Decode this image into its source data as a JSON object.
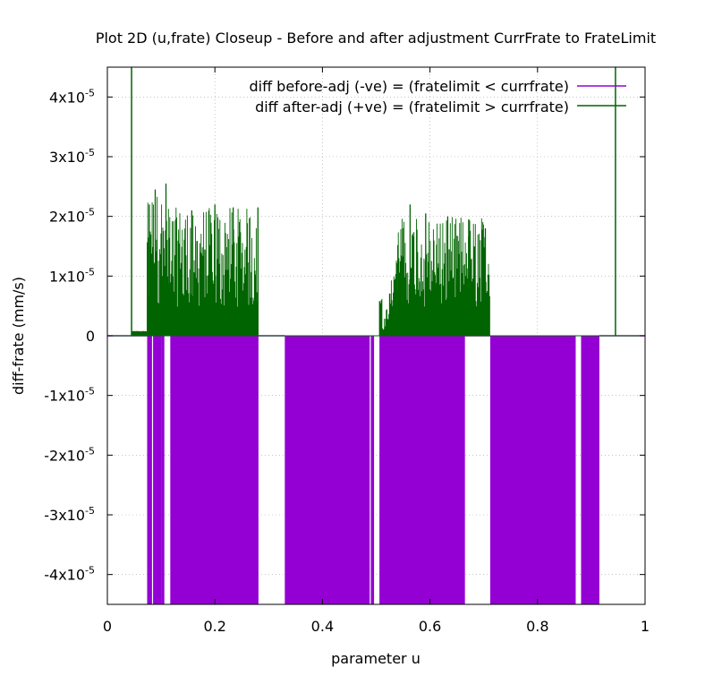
{
  "chart_data": {
    "type": "line",
    "title": "Plot 2D (u,frate) Closeup - Before and after adjustment CurrFrate to FrateLimit",
    "xlabel": "parameter u",
    "ylabel": "diff-frate (mm/s)",
    "xlim": [
      0,
      1
    ],
    "ylim": [
      -4.5e-05,
      4.5e-05
    ],
    "grid": true,
    "legend_position": "top-right",
    "x_ticks": [
      {
        "value": 0,
        "label": "0"
      },
      {
        "value": 0.2,
        "label": "0.2"
      },
      {
        "value": 0.4,
        "label": "0.4"
      },
      {
        "value": 0.6,
        "label": "0.6"
      },
      {
        "value": 0.8,
        "label": "0.8"
      },
      {
        "value": 1,
        "label": "1"
      }
    ],
    "y_ticks": [
      {
        "value": 4e-05,
        "mant": "4x10",
        "exp": "-5",
        "plain": ""
      },
      {
        "value": 3e-05,
        "mant": "3x10",
        "exp": "-5",
        "plain": ""
      },
      {
        "value": 2e-05,
        "mant": "2x10",
        "exp": "-5",
        "plain": ""
      },
      {
        "value": 1e-05,
        "mant": "1x10",
        "exp": "-5",
        "plain": ""
      },
      {
        "value": 0,
        "mant": "",
        "exp": "",
        "plain": "0"
      },
      {
        "value": -1e-05,
        "mant": "-1x10",
        "exp": "-5",
        "plain": ""
      },
      {
        "value": -2e-05,
        "mant": "-2x10",
        "exp": "-5",
        "plain": ""
      },
      {
        "value": -3e-05,
        "mant": "-3x10",
        "exp": "-5",
        "plain": ""
      },
      {
        "value": -4e-05,
        "mant": "-4x10",
        "exp": "-5",
        "plain": ""
      }
    ],
    "series": [
      {
        "name": "diff before-adj (-ve) = (fratelimit < currfrate)",
        "color": "#9400d3",
        "style": "dense-impulses",
        "segments": [
          {
            "x_start": 0.074,
            "x_end": 0.083,
            "y_min": -4.5e-05
          },
          {
            "x_start": 0.085,
            "x_end": 0.1,
            "y_min": -4.5e-05
          },
          {
            "x_start": 0.1,
            "x_end": 0.106,
            "y_min": -4.5e-05
          },
          {
            "x_start": 0.117,
            "x_end": 0.281,
            "y_min": -4.5e-05
          },
          {
            "x_start": 0.33,
            "x_end": 0.488,
            "y_min": -4.5e-05
          },
          {
            "x_start": 0.49,
            "x_end": 0.496,
            "y_min": -4.5e-05
          },
          {
            "x_start": 0.506,
            "x_end": 0.665,
            "y_min": -4.5e-05
          },
          {
            "x_start": 0.712,
            "x_end": 0.871,
            "y_min": -4.5e-05
          },
          {
            "x_start": 0.881,
            "x_end": 0.915,
            "y_min": -4.5e-05
          }
        ],
        "baseline_spans": [
          {
            "x_start": 0,
            "x_end": 0.074
          },
          {
            "x_start": 0.28,
            "x_end": 0.33
          },
          {
            "x_start": 0.665,
            "x_end": 0.712
          },
          {
            "x_start": 0.915,
            "x_end": 1
          }
        ]
      },
      {
        "name": "diff after-adj (+ve) = (fratelimit > currfrate)",
        "color": "#006400",
        "style": "dense-impulses",
        "full_height_spikes": [
          0.045,
          0.945
        ],
        "segments": [
          {
            "x_start": 0.045,
            "x_end": 0.074,
            "y_max": 8e-07
          },
          {
            "x_start": 0.074,
            "x_end": 0.115,
            "y_max": 2.4e-05
          },
          {
            "x_start": 0.115,
            "x_end": 0.281,
            "y_max": 2.15e-05
          },
          {
            "x_start": 0.506,
            "x_end": 0.54,
            "y_max": 1.8e-05
          },
          {
            "x_start": 0.54,
            "x_end": 0.712,
            "y_max": 2e-05
          }
        ],
        "peaks": [
          {
            "x": 0.078,
            "y": 2.2e-05
          },
          {
            "x": 0.089,
            "y": 2.45e-05
          },
          {
            "x": 0.109,
            "y": 2.55e-05
          },
          {
            "x": 0.157,
            "y": 2.1e-05
          },
          {
            "x": 0.2,
            "y": 2.2e-05
          },
          {
            "x": 0.234,
            "y": 2.15e-05
          },
          {
            "x": 0.28,
            "y": 2.15e-05
          },
          {
            "x": 0.563,
            "y": 2.2e-05
          },
          {
            "x": 0.592,
            "y": 2.05e-05
          },
          {
            "x": 0.633,
            "y": 2e-05
          },
          {
            "x": 0.672,
            "y": 1.95e-05
          },
          {
            "x": 0.703,
            "y": 1.8e-05
          }
        ]
      }
    ]
  }
}
